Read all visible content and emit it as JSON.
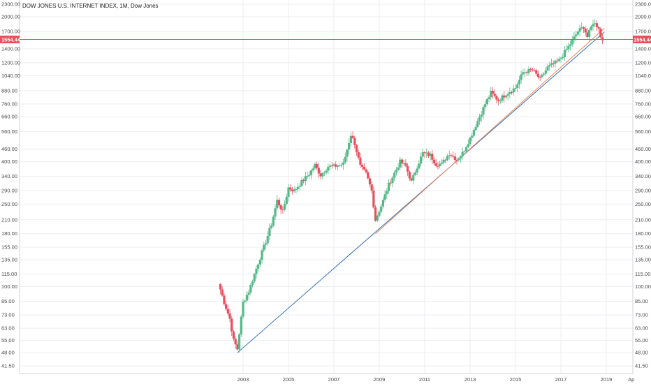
{
  "chart_data": {
    "type": "candlestick",
    "title": "DOW JONES U.S. INTERNET INDEX, 1M, Dow Jones",
    "scale": "log",
    "ylim": [
      38,
      2400
    ],
    "y_ticks": [
      "41.50",
      "48.00",
      "55.00",
      "63.00",
      "73.00",
      "85.00",
      "100.00",
      "115.00",
      "135.00",
      "155.00",
      "180.00",
      "210.00",
      "250.00",
      "290.00",
      "340.00",
      "400.00",
      "460.00",
      "560.00",
      "660.00",
      "760.00",
      "880.00",
      "1040.00",
      "1200.00",
      "1400.00",
      "1700.00",
      "2000.00",
      "2300.00"
    ],
    "x_ticks": [
      "2003",
      "2005",
      "2007",
      "2009",
      "2011",
      "2013",
      "2015",
      "2017",
      "2019",
      "Ap"
    ],
    "last_price": "1554.44",
    "colors": {
      "up": "#53b987",
      "down": "#eb4d5c",
      "trend_blue": "#2f6fbe",
      "trend_orange": "#f0834f",
      "price_line": "#eb4d5c"
    },
    "trendlines": [
      {
        "name": "",
        "color": "#2f6fbe",
        "start": [
          "2002-10",
          48
        ],
        "end": [
          "2018-12",
          1690
        ]
      },
      {
        "name": "",
        "color": "#f0834f",
        "start": [
          "2008-11",
          180
        ],
        "end": [
          "2018-12",
          1760
        ]
      }
    ],
    "close_path": [
      [
        "2002-01",
        97
      ],
      [
        "2002-03",
        84
      ],
      [
        "2002-06",
        70
      ],
      [
        "2002-08",
        55
      ],
      [
        "2002-10",
        50
      ],
      [
        "2003-01",
        84
      ],
      [
        "2003-04",
        95
      ],
      [
        "2003-09",
        130
      ],
      [
        "2004-01",
        165
      ],
      [
        "2004-04",
        200
      ],
      [
        "2004-07",
        260
      ],
      [
        "2004-10",
        230
      ],
      [
        "2005-01",
        300
      ],
      [
        "2005-04",
        290
      ],
      [
        "2005-08",
        320
      ],
      [
        "2005-12",
        350
      ],
      [
        "2006-03",
        385
      ],
      [
        "2006-06",
        345
      ],
      [
        "2006-10",
        380
      ],
      [
        "2007-01",
        380
      ],
      [
        "2007-06",
        390
      ],
      [
        "2007-10",
        540
      ],
      [
        "2007-12",
        490
      ],
      [
        "2008-03",
        380
      ],
      [
        "2008-06",
        350
      ],
      [
        "2008-09",
        290
      ],
      [
        "2008-11",
        210
      ],
      [
        "2009-02",
        245
      ],
      [
        "2009-06",
        310
      ],
      [
        "2009-12",
        400
      ],
      [
        "2010-03",
        380
      ],
      [
        "2010-06",
        320
      ],
      [
        "2010-09",
        380
      ],
      [
        "2010-12",
        440
      ],
      [
        "2011-04",
        430
      ],
      [
        "2011-07",
        390
      ],
      [
        "2011-10",
        390
      ],
      [
        "2012-02",
        440
      ],
      [
        "2012-06",
        410
      ],
      [
        "2012-09",
        440
      ],
      [
        "2013-01",
        520
      ],
      [
        "2013-05",
        630
      ],
      [
        "2013-09",
        760
      ],
      [
        "2013-12",
        860
      ],
      [
        "2014-04",
        790
      ],
      [
        "2014-08",
        850
      ],
      [
        "2015-01",
        910
      ],
      [
        "2015-05",
        1080
      ],
      [
        "2015-10",
        1110
      ],
      [
        "2016-02",
        1000
      ],
      [
        "2016-06",
        1140
      ],
      [
        "2016-12",
        1230
      ],
      [
        "2017-06",
        1480
      ],
      [
        "2017-10",
        1700
      ],
      [
        "2018-01",
        1790
      ],
      [
        "2018-03",
        1600
      ],
      [
        "2018-06",
        1880
      ],
      [
        "2018-09",
        1780
      ],
      [
        "2018-10",
        1590
      ],
      [
        "2018-11",
        1554
      ]
    ]
  }
}
